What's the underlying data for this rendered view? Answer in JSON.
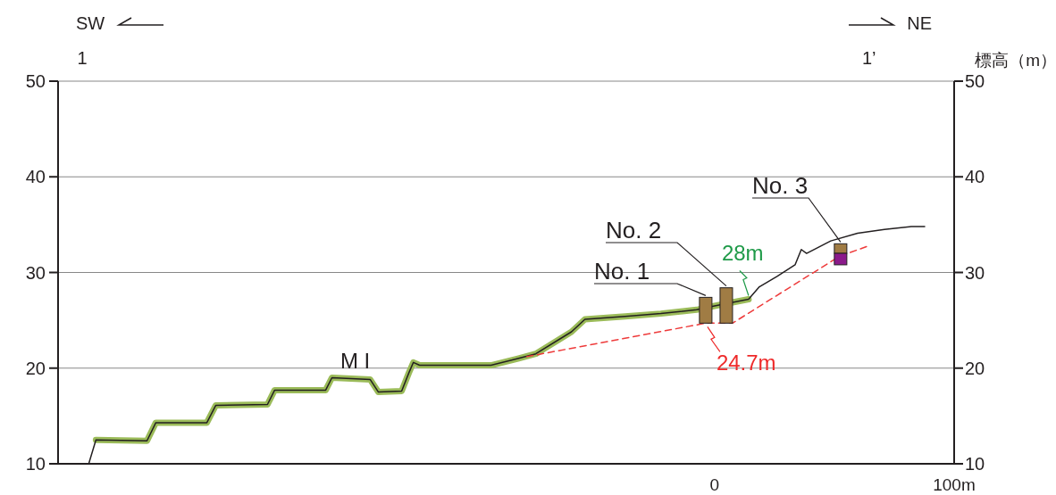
{
  "chart_data": {
    "type": "line",
    "xlim": [
      -274,
      100
    ],
    "xticks": [
      0,
      {
        "value": 100,
        "label": "100m"
      }
    ],
    "ylim": [
      10,
      50
    ],
    "yticks": [
      10,
      20,
      30,
      40,
      50
    ],
    "y2lim": [
      10,
      50
    ],
    "y2ticks": [
      10,
      20,
      30,
      40,
      50
    ],
    "y2label": "標高（m）",
    "grid": "y",
    "line_style": "solid",
    "marker": "none",
    "series": [
      {
        "color": "#9bbb59",
        "x": [
          -258.2,
          -236.9,
          -233.2,
          -211.9,
          -208.2,
          -186.6,
          -183.6,
          -162.3,
          -159.7,
          -143.7,
          -140.3,
          -130.6,
          -127.6,
          -125.7,
          -123.1,
          -93.3,
          -82.1,
          -74.6,
          -59.7,
          -54.1,
          -37.3,
          -22.4,
          -7.5,
          0,
          14.2
        ],
        "values": [
          12.5,
          12.4,
          14.3,
          14.3,
          16.1,
          16.2,
          17.7,
          17.7,
          19.0,
          18.8,
          17.5,
          17.6,
          19.5,
          20.6,
          20.3,
          20.3,
          21.0,
          21.5,
          23.8,
          25.1,
          25.4,
          25.7,
          26.1,
          26.5,
          27.2
        ]
      },
      {
        "color": "#231f20",
        "x": [
          -261.2,
          -258.2,
          -236.9,
          -233.2,
          -211.9,
          -208.2,
          -186.6,
          -183.6,
          -162.3,
          -159.7,
          -143.7,
          -140.3,
          -130.6,
          -127.6,
          -125.7,
          -123.1,
          -93.3,
          -82.1,
          -74.6,
          -59.7,
          -54.1,
          -37.3,
          -22.4,
          -7.5,
          0,
          14.2,
          18.7,
          26.1,
          33.6,
          36.2,
          38.4,
          48.5,
          59.7,
          70.9,
          82.1,
          87.7
        ],
        "values": [
          10,
          12.5,
          12.4,
          14.3,
          14.3,
          16.1,
          16.2,
          17.7,
          17.7,
          19.0,
          18.8,
          17.5,
          17.6,
          19.5,
          20.6,
          20.3,
          20.3,
          21.0,
          21.5,
          23.8,
          25.1,
          25.4,
          25.7,
          26.1,
          26.5,
          27.2,
          28.5,
          29.6,
          30.8,
          32.4,
          32.0,
          33.3,
          34.1,
          34.5,
          34.8,
          34.8
        ]
      },
      {
        "color": "#ee3b3b",
        "line_style": "dashed",
        "x": [
          -78.4,
          -3.7,
          7.5,
          52.2,
          63.4
        ],
        "values": [
          21.2,
          24.7,
          24.7,
          31.7,
          32.7
        ]
      },
      {
        "type": "bar",
        "color": "#a07c44",
        "x": [
          -3.7,
          4.9,
          52.6
        ],
        "base": [
          24.7,
          24.7,
          32.0
        ],
        "values": [
          2.7,
          3.7,
          1.0
        ]
      },
      {
        "type": "bar",
        "color": "#8b1a8b",
        "x": [
          52.6
        ],
        "base": [
          30.8
        ],
        "values": [
          1.2
        ]
      }
    ],
    "annotations": [
      "SW",
      "NE",
      "1",
      "1’",
      {
        "text": "No. 1",
        "x": -3.7,
        "y": 27.4
      },
      {
        "text": "No. 2",
        "x": 4.9,
        "y": 28.4
      },
      {
        "text": "No. 3",
        "x": 52.6,
        "y": 33.0
      },
      {
        "text": "28m",
        "x": 14.2,
        "y": 27.2
      },
      {
        "text": "24.7m",
        "x": -3.7,
        "y": 24.7
      },
      {
        "text": "M I",
        "x": -150,
        "y": 19.0
      }
    ]
  }
}
